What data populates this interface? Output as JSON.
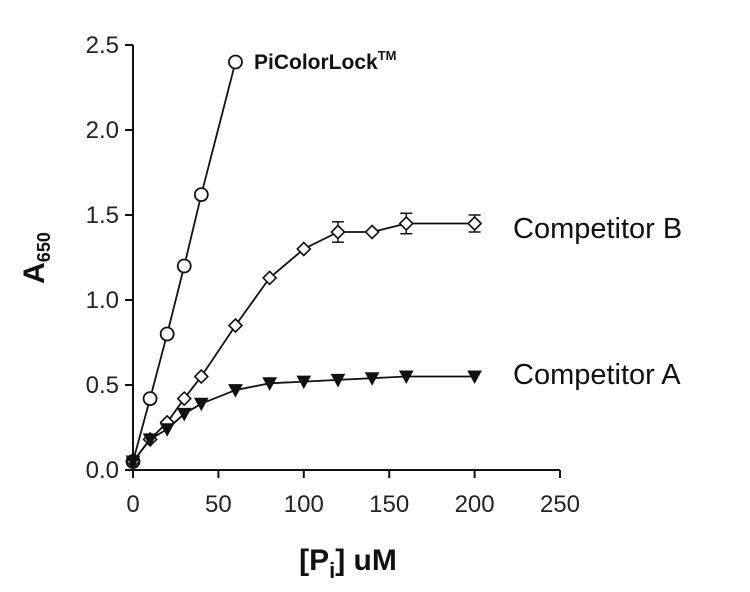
{
  "chart_data": {
    "type": "line",
    "xlabel": {
      "pre": "[P",
      "sub": "i",
      "post": "] uM"
    },
    "ylabel": {
      "main": "A",
      "sub": "650"
    },
    "xlim": [
      0,
      250
    ],
    "ylim": [
      0,
      2.5
    ],
    "x_ticks": [
      "0",
      "50",
      "100",
      "150",
      "200",
      "250"
    ],
    "y_ticks": [
      "0.0",
      "0.5",
      "1.0",
      "1.5",
      "2.0",
      "2.5"
    ],
    "grid": false,
    "series": [
      {
        "name": "PiColorLock",
        "name_sup": "TM",
        "marker": "circle-open",
        "x": [
          0,
          10,
          20,
          30,
          40,
          60
        ],
        "y": [
          0.05,
          0.42,
          0.8,
          1.2,
          1.62,
          2.4
        ]
      },
      {
        "name": "Competitor B",
        "marker": "diamond-open",
        "x": [
          0,
          10,
          20,
          30,
          40,
          60,
          80,
          100,
          120,
          140,
          160,
          200
        ],
        "y": [
          0.05,
          0.18,
          0.28,
          0.42,
          0.55,
          0.85,
          1.13,
          1.3,
          1.4,
          1.4,
          1.45,
          1.45
        ],
        "error": [
          0,
          0,
          0,
          0,
          0,
          0,
          0,
          0,
          0.06,
          0,
          0.06,
          0.05
        ]
      },
      {
        "name": "Competitor A",
        "marker": "triangle-down-filled",
        "x": [
          0,
          10,
          20,
          30,
          40,
          60,
          80,
          100,
          120,
          140,
          160,
          200
        ],
        "y": [
          0.05,
          0.18,
          0.24,
          0.33,
          0.39,
          0.47,
          0.51,
          0.52,
          0.53,
          0.54,
          0.55,
          0.55
        ]
      }
    ]
  }
}
